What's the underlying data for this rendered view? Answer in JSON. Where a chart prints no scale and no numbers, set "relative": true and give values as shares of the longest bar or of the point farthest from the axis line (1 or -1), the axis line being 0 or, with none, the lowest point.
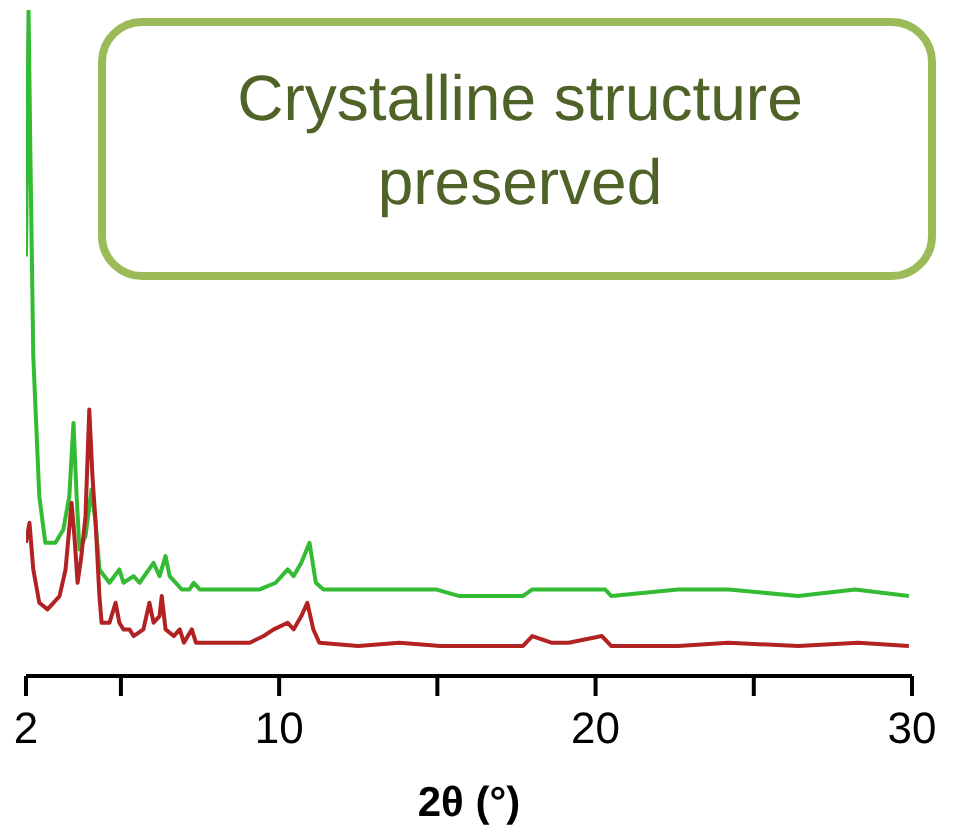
{
  "chart_data": {
    "type": "line",
    "relative": true,
    "xlabel": "2θ (°)",
    "xlim": [
      2,
      30
    ],
    "xticks": [
      2,
      {
        "value": 5,
        "label": null
      },
      10,
      {
        "value": 15,
        "label": null
      },
      20,
      {
        "value": 25,
        "label": null
      },
      30
    ],
    "marker": "none",
    "line_style": "solid",
    "tick_labels": "x",
    "annotations": [
      "Crystalline structure preserved"
    ],
    "series": [
      {
        "color": "#33bb33",
        "x": [
          2.0,
          2.08,
          2.14,
          2.23,
          2.42,
          2.61,
          2.93,
          3.18,
          3.37,
          3.5,
          3.6,
          3.69,
          3.88,
          4.07,
          4.2,
          4.32,
          4.64,
          4.95,
          5.08,
          5.4,
          5.59,
          6.03,
          6.22,
          6.41,
          6.54,
          6.92,
          7.17,
          7.3,
          7.49,
          8.12,
          8.76,
          9.01,
          9.39,
          9.89,
          10.27,
          10.46,
          10.7,
          10.96,
          11.16,
          11.4,
          11.9,
          12.74,
          13.8,
          14.45,
          14.95,
          15.7,
          17.7,
          18.0,
          18.5,
          19.15,
          20.3,
          20.5,
          22.6,
          24.2,
          26.4,
          28.2,
          29.9
        ],
        "values": [
          0.63,
          1.0,
          0.78,
          0.48,
          0.27,
          0.2,
          0.2,
          0.22,
          0.27,
          0.38,
          0.27,
          0.19,
          0.21,
          0.28,
          0.23,
          0.16,
          0.14,
          0.16,
          0.14,
          0.15,
          0.14,
          0.17,
          0.15,
          0.18,
          0.15,
          0.13,
          0.13,
          0.14,
          0.13,
          0.13,
          0.13,
          0.13,
          0.13,
          0.14,
          0.16,
          0.15,
          0.17,
          0.2,
          0.14,
          0.13,
          0.13,
          0.13,
          0.13,
          0.13,
          0.13,
          0.12,
          0.12,
          0.13,
          0.13,
          0.13,
          0.13,
          0.12,
          0.13,
          0.13,
          0.12,
          0.13,
          0.12
        ]
      },
      {
        "color": "#b22222",
        "x": [
          2.0,
          2.11,
          2.23,
          2.42,
          2.68,
          3.06,
          3.25,
          3.44,
          3.53,
          3.63,
          3.75,
          3.88,
          4.0,
          4.1,
          4.2,
          4.32,
          4.39,
          4.64,
          4.83,
          4.95,
          5.08,
          5.27,
          5.4,
          5.71,
          5.9,
          6.03,
          6.22,
          6.29,
          6.41,
          6.67,
          6.86,
          6.99,
          7.24,
          7.37,
          7.49,
          8.12,
          8.63,
          9.07,
          9.51,
          9.83,
          10.27,
          10.46,
          10.7,
          10.89,
          11.08,
          11.27,
          12.5,
          13.8,
          15.1,
          17.7,
          18.0,
          18.6,
          19.15,
          20.2,
          20.5,
          22.6,
          24.2,
          26.4,
          28.3,
          29.9
        ],
        "values": [
          0.2,
          0.23,
          0.16,
          0.11,
          0.1,
          0.12,
          0.16,
          0.26,
          0.21,
          0.14,
          0.18,
          0.24,
          0.4,
          0.3,
          0.23,
          0.12,
          0.08,
          0.08,
          0.11,
          0.08,
          0.07,
          0.07,
          0.06,
          0.07,
          0.11,
          0.08,
          0.09,
          0.12,
          0.07,
          0.06,
          0.07,
          0.05,
          0.07,
          0.05,
          0.05,
          0.05,
          0.05,
          0.05,
          0.06,
          0.07,
          0.08,
          0.07,
          0.09,
          0.11,
          0.07,
          0.05,
          0.045,
          0.05,
          0.045,
          0.045,
          0.06,
          0.05,
          0.05,
          0.06,
          0.045,
          0.045,
          0.05,
          0.045,
          0.05,
          0.045
        ]
      }
    ]
  }
}
